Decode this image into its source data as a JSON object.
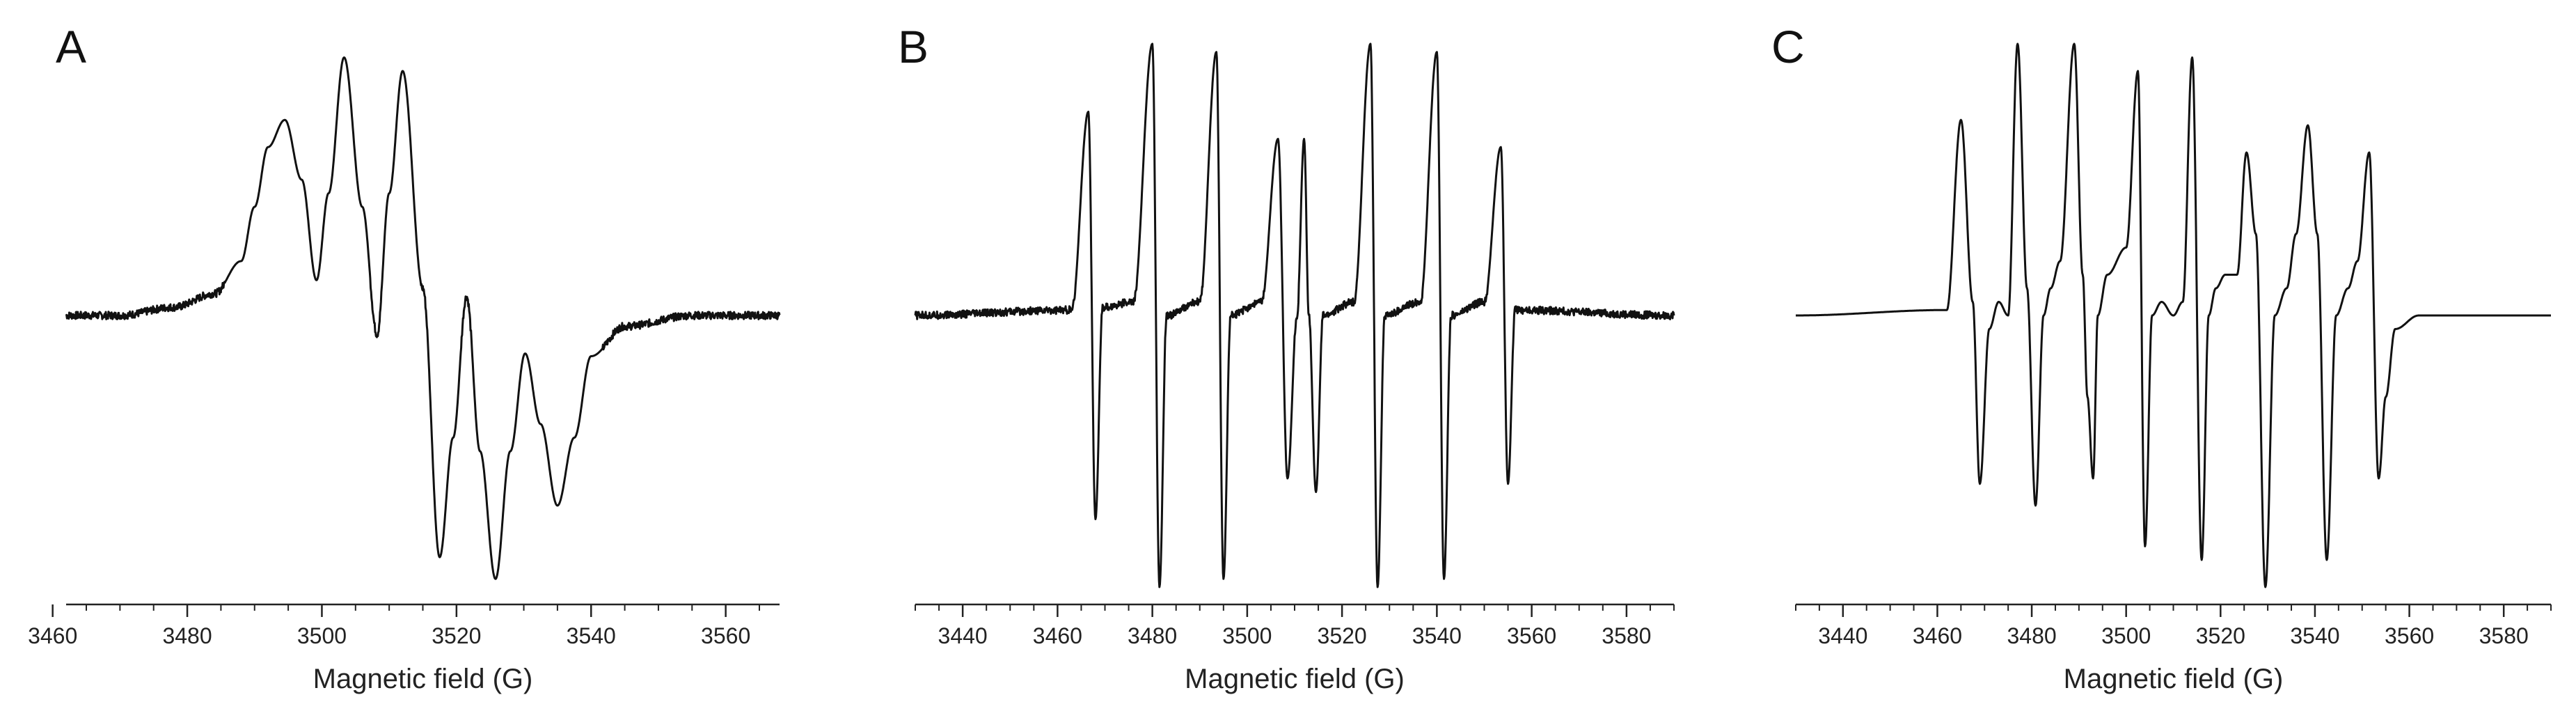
{
  "chart_data": [
    {
      "type": "line",
      "panel_label": "A",
      "xlabel": "Magnetic field (G)",
      "ylabel": "",
      "xlim": [
        3462,
        3568
      ],
      "ylim": [
        -1.0,
        1.0
      ],
      "xticks": [
        3460,
        3480,
        3500,
        3520,
        3540,
        3560
      ],
      "minor_step": 5,
      "show_y_axis": false,
      "grid": false,
      "baseline_noise": true,
      "series": [
        {
          "x": [
            3462,
            3470,
            3478,
            3484,
            3488,
            3490,
            3492,
            3494.5,
            3497,
            3499.2,
            3501,
            3503.3,
            3506,
            3508.2,
            3510,
            3512,
            3515,
            3517.5,
            3519.5,
            3521.5,
            3523.5,
            3525.8,
            3528,
            3530.2,
            3532.5,
            3535,
            3537.5,
            3540,
            3545,
            3555,
            3568
          ],
          "y": [
            0.0,
            0.0,
            0.03,
            0.08,
            0.2,
            0.4,
            0.62,
            0.72,
            0.5,
            0.13,
            0.45,
            0.95,
            0.4,
            -0.07,
            0.45,
            0.9,
            0.1,
            -0.89,
            -0.45,
            0.07,
            -0.5,
            -0.97,
            -0.5,
            -0.14,
            -0.4,
            -0.7,
            -0.45,
            -0.15,
            -0.04,
            0.0,
            0.0
          ]
        }
      ]
    },
    {
      "type": "line",
      "panel_label": "B",
      "xlabel": "Magnetic field (G)",
      "ylabel": "",
      "xlim": [
        3430,
        3590
      ],
      "ylim": [
        -1.0,
        1.0
      ],
      "xticks": [
        3440,
        3460,
        3480,
        3500,
        3520,
        3540,
        3560,
        3580
      ],
      "minor_step": 5,
      "show_y_axis": false,
      "grid": false,
      "baseline_noise": true,
      "series": [
        {
          "x": [
            3430,
            3463,
            3466.5,
            3468,
            3469.5,
            3476,
            3480,
            3481.5,
            3483,
            3490,
            3493.5,
            3495,
            3496.5,
            3503,
            3506.5,
            3508.5,
            3510.5,
            3512,
            3513,
            3514.5,
            3516,
            3522.5,
            3526,
            3527.5,
            3529,
            3536.5,
            3540,
            3541.5,
            3543,
            3550,
            3553.5,
            3555,
            3556.5,
            3590
          ],
          "y": [
            0.0,
            0.02,
            0.75,
            -0.75,
            0.03,
            0.05,
            1.0,
            -1.0,
            0.0,
            0.05,
            0.97,
            -0.97,
            0.0,
            0.05,
            0.65,
            -0.6,
            0.0,
            0.65,
            0.0,
            -0.65,
            0.0,
            0.05,
            1.0,
            -1.0,
            0.0,
            0.05,
            0.97,
            -0.97,
            0.0,
            0.05,
            0.62,
            -0.62,
            0.02,
            0.0
          ]
        }
      ]
    },
    {
      "type": "line",
      "panel_label": "C",
      "xlabel": "Magnetic field (G)",
      "ylabel": "",
      "xlim": [
        3430,
        3590
      ],
      "ylim": [
        -1.0,
        1.0
      ],
      "xticks": [
        3440,
        3460,
        3480,
        3500,
        3520,
        3540,
        3560,
        3580
      ],
      "minor_step": 5,
      "show_y_axis": false,
      "grid": false,
      "baseline_noise": false,
      "series": [
        {
          "x": [
            3430,
            3462,
            3465,
            3467.5,
            3469,
            3471,
            3473,
            3475,
            3477,
            3479,
            3480.8,
            3482.5,
            3484,
            3486,
            3489,
            3490.8,
            3491.8,
            3493,
            3494,
            3496,
            3500,
            3502.5,
            3504,
            3505.5,
            3507.5,
            3510,
            3512,
            3514,
            3516,
            3517.5,
            3519,
            3521,
            3523.5,
            3525.5,
            3527.5,
            3529.5,
            3531.5,
            3534,
            3536,
            3538.5,
            3540.5,
            3542.5,
            3544.5,
            3547,
            3549,
            3551.5,
            3553.5,
            3555,
            3557,
            3562,
            3590
          ],
          "y": [
            0.0,
            0.02,
            0.72,
            0.05,
            -0.62,
            -0.05,
            0.05,
            0.0,
            1.0,
            0.1,
            -0.7,
            0.0,
            0.1,
            0.2,
            1.0,
            0.15,
            -0.3,
            -0.6,
            0.0,
            0.15,
            0.25,
            0.9,
            -0.85,
            0.0,
            0.05,
            0.0,
            0.05,
            0.95,
            -0.9,
            0.0,
            0.1,
            0.15,
            0.15,
            0.6,
            0.3,
            -1.0,
            0.0,
            0.1,
            0.3,
            0.7,
            0.3,
            -0.9,
            0.0,
            0.1,
            0.2,
            0.6,
            -0.6,
            -0.3,
            -0.05,
            0.0,
            0.0
          ]
        }
      ]
    }
  ]
}
